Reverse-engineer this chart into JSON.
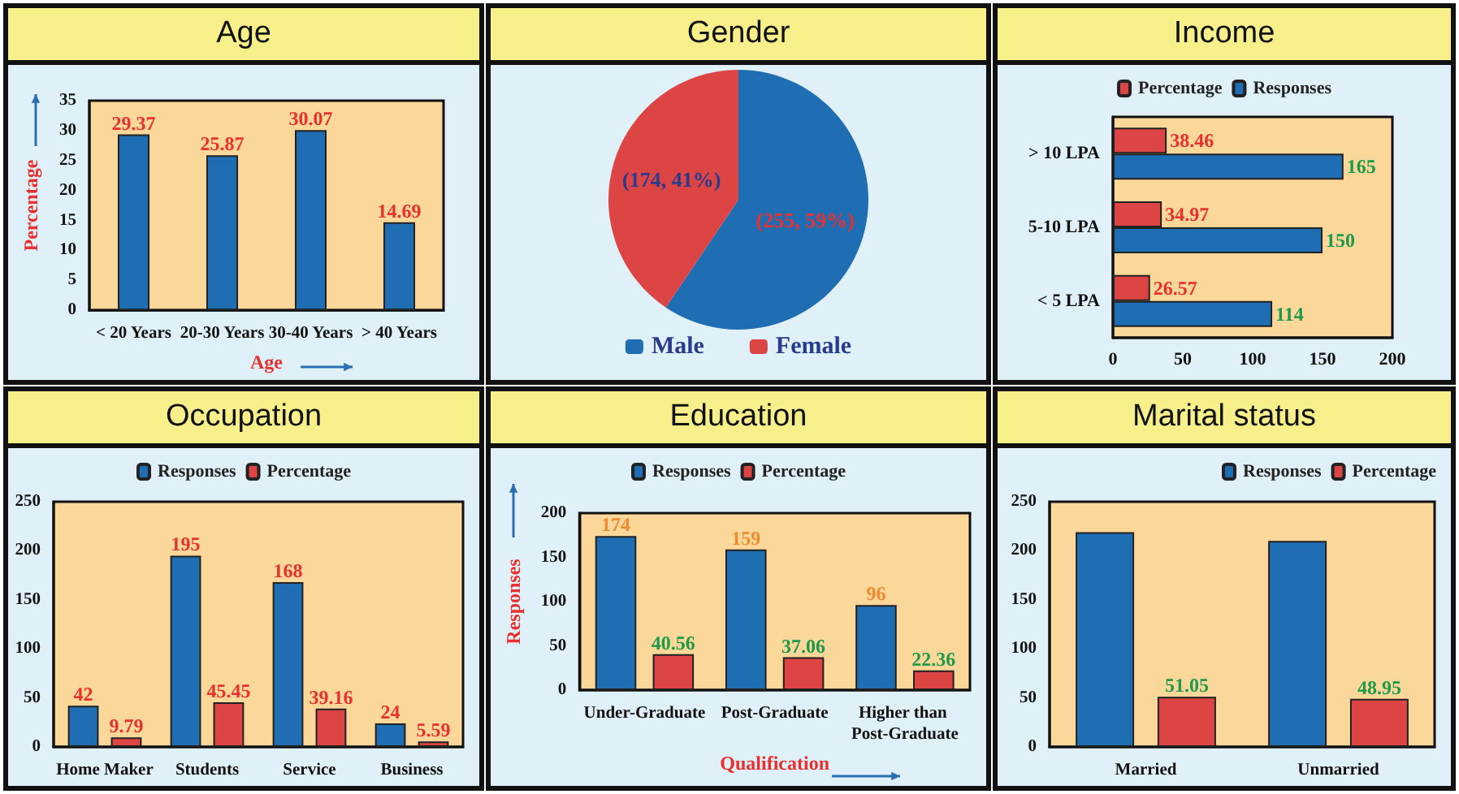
{
  "chart_data": [
    {
      "type": "bar",
      "title": "Age",
      "xlabel": "Age",
      "ylabel": "Percentage",
      "categories": [
        "< 20 Years",
        "20-30 Years",
        "30-40 Years",
        "> 40 Years"
      ],
      "values": [
        29.37,
        25.87,
        30.07,
        14.69
      ],
      "color": "#1f6db3",
      "data_labels": true,
      "ylim": [
        0,
        35
      ],
      "yticks": [
        0,
        5,
        10,
        15,
        20,
        25,
        30,
        35
      ]
    },
    {
      "type": "pie",
      "title": "Gender",
      "categories": [
        "Male",
        "Female"
      ],
      "values": [
        255,
        174
      ],
      "colors": [
        "#1f6db3",
        "#dd4444"
      ],
      "value_labels": [
        "(255, 59%)",
        "(174, 41%)"
      ],
      "legend": "bottom"
    },
    {
      "type": "bar",
      "title": "Income",
      "orientation": "horizontal",
      "categories": [
        "> 10 LPA",
        "5-10 LPA",
        "< 5 LPA"
      ],
      "series": [
        {
          "name": "Percentage",
          "color": "#dd4444",
          "values": [
            38.46,
            34.97,
            26.57
          ]
        },
        {
          "name": "Responses",
          "color": "#1f6db3",
          "values": [
            165,
            150,
            114
          ]
        }
      ],
      "data_labels": true,
      "xlim": [
        0,
        200
      ],
      "xticks": [
        0,
        50,
        100,
        150,
        200
      ],
      "legend": "top"
    },
    {
      "type": "bar",
      "title": "Occupation",
      "categories": [
        "Home Maker",
        "Students",
        "Service",
        "Business"
      ],
      "series": [
        {
          "name": "Responses",
          "color": "#1f6db3",
          "values": [
            42,
            195,
            168,
            24
          ]
        },
        {
          "name": "Percentage",
          "color": "#dd4444",
          "values": [
            9.79,
            45.45,
            39.16,
            5.59
          ]
        }
      ],
      "data_labels": true,
      "ylim": [
        0,
        250
      ],
      "yticks": [
        0,
        50,
        100,
        150,
        200,
        250
      ],
      "legend": "top"
    },
    {
      "type": "bar",
      "title": "Education",
      "xlabel": "Qualification",
      "ylabel": "Responses",
      "categories": [
        "Under-Graduate",
        "Post-Graduate",
        "Higher than Post-Graduate"
      ],
      "series": [
        {
          "name": "Responses",
          "color": "#1f6db3",
          "values": [
            174,
            159,
            96
          ]
        },
        {
          "name": "Percentage",
          "color": "#dd4444",
          "values": [
            40.56,
            37.06,
            22.36
          ]
        }
      ],
      "data_labels": true,
      "ylim": [
        0,
        200
      ],
      "yticks": [
        0,
        50,
        100,
        150,
        200
      ],
      "legend": "top"
    },
    {
      "type": "bar",
      "title": "Marital status",
      "categories": [
        "Married",
        "Unmarried"
      ],
      "series": [
        {
          "name": "Responses",
          "color": "#1f6db3",
          "values": [
            219,
            210
          ]
        },
        {
          "name": "Percentage",
          "color": "#dd4444",
          "values": [
            51.05,
            48.95
          ],
          "value_labels": [
            "51.05",
            "48.95"
          ]
        }
      ],
      "ylim": [
        0,
        250
      ],
      "yticks": [
        0,
        50,
        100,
        150,
        200,
        250
      ],
      "legend": "top right"
    }
  ]
}
